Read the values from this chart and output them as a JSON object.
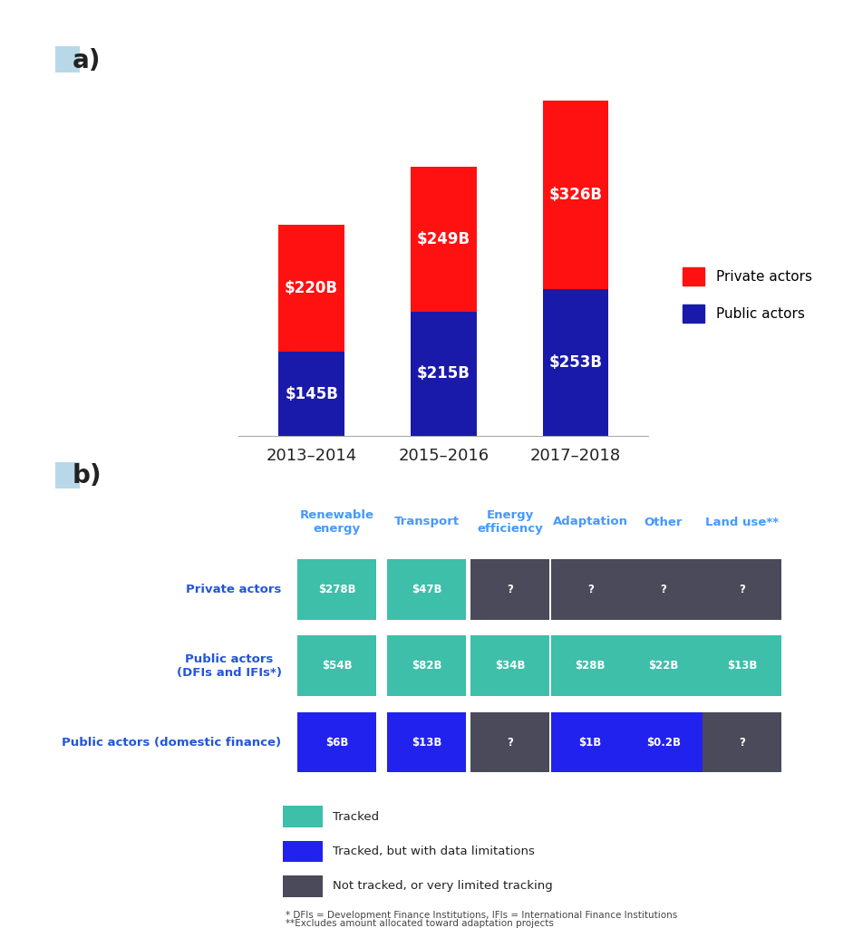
{
  "fig_a": {
    "categories": [
      "2013–2014",
      "2015–2016",
      "2017–2018"
    ],
    "public_values": [
      145,
      215,
      253
    ],
    "private_values": [
      220,
      249,
      326
    ],
    "public_color": "#1a1aaa",
    "private_color": "#ff1111",
    "label_color": "#FFFFFF",
    "label_fontsize": 12,
    "tick_fontsize": 13
  },
  "fig_b": {
    "row_labels": [
      "Private actors",
      "Public actors\n(DFIs and IFIs*)",
      "Public actors (domestic finance)"
    ],
    "col_labels": [
      "Renewable\nenergy",
      "Transport",
      "Energy\nefficiency",
      "Adaptation",
      "Other",
      "Land use**"
    ],
    "row_label_color": "#2255dd",
    "col_label_color": "#4499ff",
    "col_label_fontsize": 9.5,
    "row_label_fontsize": 9.5,
    "cell_fontsize": 8.5,
    "cell_text_color": "#FFFFFF",
    "color_tracked": "#3dbfaa",
    "color_tracked_limited": "#2222ee",
    "color_not_tracked": "#4a4a5a",
    "cells": [
      [
        {
          "value": "$278B",
          "color": "tracked"
        },
        {
          "value": "$47B",
          "color": "tracked"
        },
        {
          "value": "?",
          "color": "not_tracked"
        },
        {
          "value": "?",
          "color": "not_tracked"
        },
        {
          "value": "?",
          "color": "not_tracked"
        },
        {
          "value": "?",
          "color": "not_tracked"
        }
      ],
      [
        {
          "value": "$54B",
          "color": "tracked"
        },
        {
          "value": "$82B",
          "color": "tracked"
        },
        {
          "value": "$34B",
          "color": "tracked"
        },
        {
          "value": "$28B",
          "color": "tracked"
        },
        {
          "value": "$22B",
          "color": "tracked"
        },
        {
          "value": "$13B",
          "color": "tracked"
        }
      ],
      [
        {
          "value": "$6B",
          "color": "tracked_limited"
        },
        {
          "value": "$13B",
          "color": "tracked_limited"
        },
        {
          "value": "?",
          "color": "not_tracked"
        },
        {
          "value": "$1B",
          "color": "tracked_limited"
        },
        {
          "value": "$0.2B",
          "color": "tracked_limited"
        },
        {
          "value": "?",
          "color": "not_tracked"
        }
      ]
    ],
    "legend_items": [
      {
        "label": "Tracked",
        "color": "tracked"
      },
      {
        "label": "Tracked, but with data limitations",
        "color": "tracked_limited"
      },
      {
        "label": "Not tracked, or very limited tracking",
        "color": "not_tracked"
      }
    ],
    "footnote1": "* DFIs = Development Finance Institutions, IFIs = International Finance Institutions",
    "footnote2": "**Excludes amount allocated toward adaptation projects"
  }
}
